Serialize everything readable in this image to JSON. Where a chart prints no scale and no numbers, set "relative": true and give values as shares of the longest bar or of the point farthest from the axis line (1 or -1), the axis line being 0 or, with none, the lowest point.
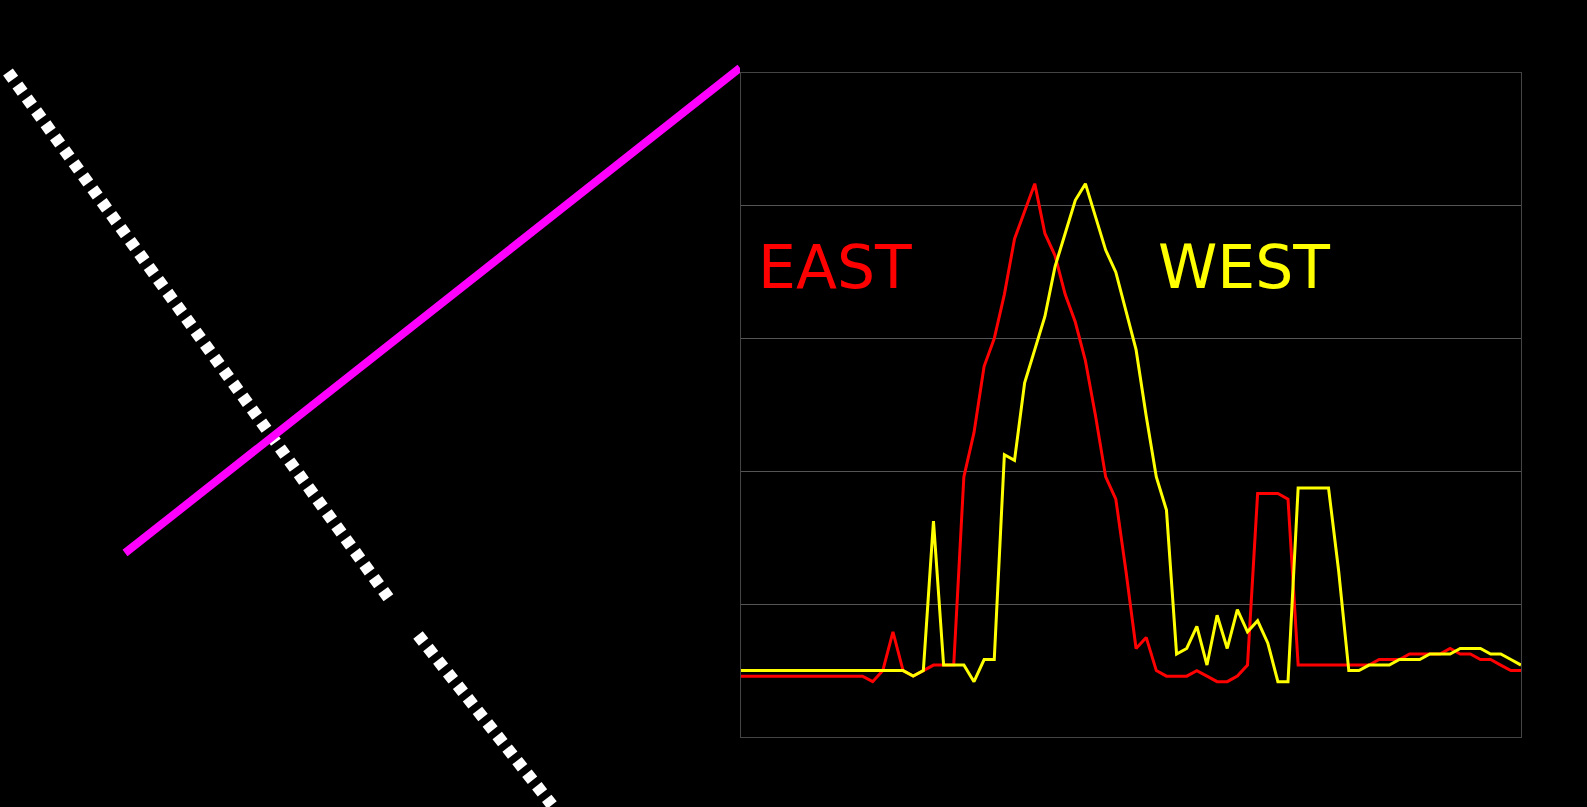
{
  "chart_data": {
    "type": "line",
    "relative": true,
    "grid": "y",
    "legend": false,
    "marker": "none",
    "line_style": "solid",
    "categories": [
      null,
      null,
      null,
      null,
      null,
      null,
      null,
      null,
      null,
      null,
      null,
      null,
      null,
      null,
      null,
      null,
      null,
      null,
      null,
      null,
      null,
      null,
      null,
      null,
      null,
      null,
      null,
      null,
      null,
      null,
      null,
      null,
      null,
      null,
      null,
      null,
      null,
      null,
      null,
      null,
      null,
      null,
      null,
      null,
      null,
      null,
      null,
      null,
      null,
      null,
      null,
      null,
      null,
      null,
      null,
      null,
      null,
      null,
      null,
      null,
      null,
      null,
      null,
      null,
      null,
      null,
      null,
      null,
      null,
      null,
      null,
      null,
      null,
      null,
      null,
      null,
      null,
      null
    ],
    "series": [
      {
        "name": "EAST",
        "color": "#ff0000",
        "values": [
          0.11,
          0.11,
          0.11,
          0.11,
          0.11,
          0.11,
          0.11,
          0.11,
          0.11,
          0.11,
          0.11,
          0.11,
          0.11,
          0.1,
          0.12,
          0.19,
          0.12,
          0.11,
          0.12,
          0.13,
          0.13,
          0.13,
          0.47,
          0.55,
          0.67,
          0.72,
          0.8,
          0.9,
          0.95,
          1.0,
          0.91,
          0.87,
          0.8,
          0.75,
          0.68,
          0.58,
          0.47,
          0.43,
          0.3,
          0.16,
          0.18,
          0.12,
          0.11,
          0.11,
          0.11,
          0.12,
          0.11,
          0.1,
          0.1,
          0.11,
          0.13,
          0.44,
          0.44,
          0.44,
          0.43,
          0.13,
          0.13,
          0.13,
          0.13,
          0.13,
          0.13,
          0.13,
          0.13,
          0.14,
          0.14,
          0.14,
          0.15,
          0.15,
          0.15,
          0.15,
          0.16,
          0.15,
          0.15,
          0.14,
          0.14,
          0.13,
          0.12,
          0.12
        ]
      },
      {
        "name": "WEST",
        "color": "#ffff00",
        "values": [
          0.12,
          0.12,
          0.12,
          0.12,
          0.12,
          0.12,
          0.12,
          0.12,
          0.12,
          0.12,
          0.12,
          0.12,
          0.12,
          0.12,
          0.12,
          0.12,
          0.12,
          0.11,
          0.12,
          0.39,
          0.13,
          0.13,
          0.13,
          0.1,
          0.14,
          0.14,
          0.51,
          0.5,
          0.64,
          0.7,
          0.76,
          0.85,
          0.91,
          0.97,
          1.0,
          0.94,
          0.88,
          0.84,
          0.77,
          0.7,
          0.58,
          0.47,
          0.41,
          0.15,
          0.16,
          0.2,
          0.13,
          0.22,
          0.16,
          0.23,
          0.19,
          0.21,
          0.17,
          0.1,
          0.1,
          0.45,
          0.45,
          0.45,
          0.45,
          0.3,
          0.12,
          0.12,
          0.13,
          0.13,
          0.13,
          0.14,
          0.14,
          0.14,
          0.15,
          0.15,
          0.15,
          0.16,
          0.16,
          0.16,
          0.15,
          0.15,
          0.14,
          0.13
        ]
      }
    ]
  }
}
